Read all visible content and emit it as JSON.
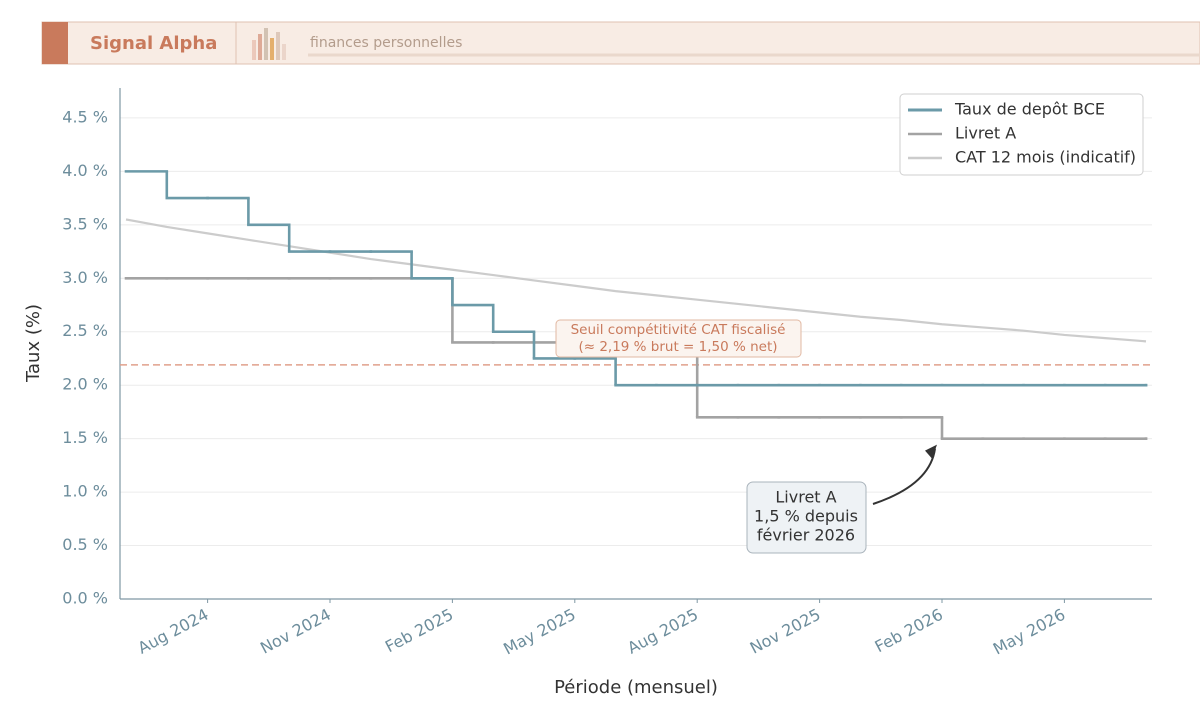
{
  "header": {
    "brand": "Signal Alpha",
    "tagline": "finances personnelles"
  },
  "chart_data": {
    "type": "line",
    "x": [
      "2024-06",
      "2024-07",
      "2024-08",
      "2024-09",
      "2024-10",
      "2024-11",
      "2024-12",
      "2025-01",
      "2025-02",
      "2025-03",
      "2025-04",
      "2025-05",
      "2025-06",
      "2025-07",
      "2025-08",
      "2025-09",
      "2025-10",
      "2025-11",
      "2025-12",
      "2026-01",
      "2026-02",
      "2026-03",
      "2026-04",
      "2026-05",
      "2026-06",
      "2026-07"
    ],
    "series": [
      {
        "name": "Taux de depôt BCE",
        "color": "#6b9aa8",
        "step": true,
        "values": [
          4.0,
          3.75,
          3.75,
          3.5,
          3.25,
          3.25,
          3.25,
          3.0,
          2.75,
          2.5,
          2.25,
          2.25,
          2.0,
          2.0,
          2.0,
          2.0,
          2.0,
          2.0,
          2.0,
          2.0,
          2.0,
          2.0,
          2.0,
          2.0,
          2.0,
          2.0
        ]
      },
      {
        "name": "Livret A",
        "color": "#a3a3a3",
        "step": true,
        "values": [
          3.0,
          3.0,
          3.0,
          3.0,
          3.0,
          3.0,
          3.0,
          3.0,
          2.4,
          2.4,
          2.4,
          2.4,
          2.4,
          2.4,
          1.7,
          1.7,
          1.7,
          1.7,
          1.7,
          1.7,
          1.5,
          1.5,
          1.5,
          1.5,
          1.5,
          1.5
        ]
      },
      {
        "name": "CAT 12 mois (indicatif)",
        "color": "#cccccc",
        "step": false,
        "values": [
          3.55,
          3.48,
          3.42,
          3.36,
          3.3,
          3.24,
          3.18,
          3.13,
          3.08,
          3.03,
          2.98,
          2.93,
          2.88,
          2.84,
          2.8,
          2.76,
          2.72,
          2.68,
          2.64,
          2.61,
          2.57,
          2.54,
          2.51,
          2.47,
          2.44,
          2.41
        ]
      }
    ],
    "xlim": [
      "2024-06",
      "2026-07"
    ],
    "xticks": [
      {
        "value": "2024-08",
        "label": "Aug 2024"
      },
      {
        "value": "2024-11",
        "label": "Nov 2024"
      },
      {
        "value": "2025-02",
        "label": "Feb 2025"
      },
      {
        "value": "2025-05",
        "label": "May 2025"
      },
      {
        "value": "2025-08",
        "label": "Aug 2025"
      },
      {
        "value": "2025-11",
        "label": "Nov 2025"
      },
      {
        "value": "2026-02",
        "label": "Feb 2026"
      },
      {
        "value": "2026-05",
        "label": "May 2026"
      }
    ],
    "ylim": [
      0,
      4.78
    ],
    "yticks": [
      {
        "value": 0,
        "label": "0.0 %"
      },
      {
        "value": 0.5,
        "label": "0.5 %"
      },
      {
        "value": 1,
        "label": "1.0 %"
      },
      {
        "value": 1.5,
        "label": "1.5 %"
      },
      {
        "value": 2,
        "label": "2.0 %"
      },
      {
        "value": 2.5,
        "label": "2.5 %"
      },
      {
        "value": 3,
        "label": "3.0 %"
      },
      {
        "value": 3.5,
        "label": "3.5 %"
      },
      {
        "value": 4,
        "label": "4.0 %"
      },
      {
        "value": 4.5,
        "label": "4.5 %"
      }
    ],
    "xlabel": "Période (mensuel)",
    "ylabel": "Taux (%)",
    "grid": true,
    "legend": "upper right",
    "threshold": {
      "value": 2.19,
      "color": "#e0a08c",
      "lines": [
        "Seuil compétitivité CAT fiscalisé",
        "(≈ 2,19 % brut = 1,50 % net)"
      ]
    },
    "annotation": {
      "lines": [
        "Livret A",
        "1,5 % depuis",
        "février 2026"
      ]
    }
  }
}
